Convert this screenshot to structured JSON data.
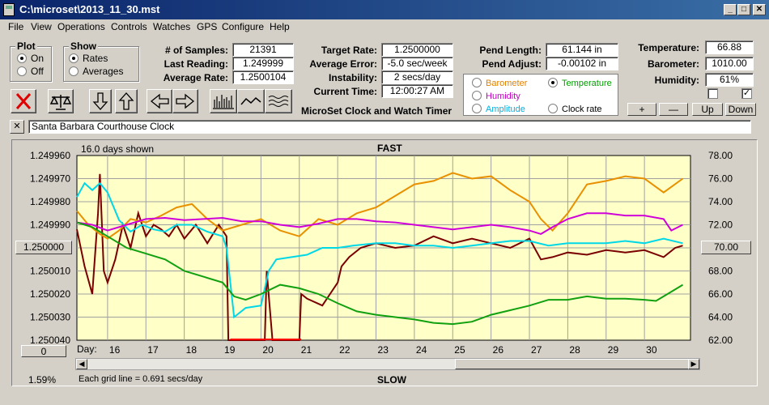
{
  "window": {
    "title": "C:\\microset\\2013_11_30.mst"
  },
  "menu": [
    "File",
    "View",
    "Operations",
    "Controls",
    "Watches",
    "GPS",
    "Configure",
    "Help"
  ],
  "plot_group": {
    "label": "Plot",
    "options": [
      "On",
      "Off"
    ],
    "selected": "On"
  },
  "show_group": {
    "label": "Show",
    "options": [
      "Rates",
      "Averages"
    ],
    "selected": "Rates"
  },
  "stats": {
    "samples_label": "# of Samples:",
    "samples": "21391",
    "last_reading_label": "Last Reading:",
    "last_reading": "1.249999",
    "average_rate_label": "Average Rate:",
    "average_rate": "1.2500104"
  },
  "targets": {
    "target_rate_label": "Target Rate:",
    "target_rate": "1.2500000",
    "average_error_label": "Average Error:",
    "average_error": "-5.0 sec/week",
    "instability_label": "Instability:",
    "instability": "2 secs/day",
    "current_time_label": "Current Time:",
    "current_time": "12:00:27 AM"
  },
  "app_name": "MicroSet Clock and Watch Timer",
  "pendulum": {
    "length_label": "Pend Length:",
    "length": "61.144 in",
    "adjust_label": "Pend Adjust:",
    "adjust": "-0.00102 in"
  },
  "overlay": {
    "options": [
      {
        "label": "Barometer",
        "color": "#e08000",
        "selected": false
      },
      {
        "label": "Temperature",
        "color": "#00a000",
        "selected": true
      },
      {
        "label": "Humidity",
        "color": "#c000c0",
        "selected": false
      },
      {
        "label": "Clock rate",
        "color": "#000000",
        "selected": false
      },
      {
        "label": "Amplitude",
        "color": "#00b0e0",
        "selected": false
      }
    ]
  },
  "environment": {
    "temperature_label": "Temperature:",
    "temperature": "66.88",
    "barometer_label": "Barometer:",
    "barometer": "1010.00",
    "humidity_label": "Humidity:",
    "humidity": "61%",
    "checkbox_left": false,
    "checkbox_right": true
  },
  "scale_buttons": {
    "plus": "+",
    "minus": "—",
    "up": "Up",
    "down": "Down"
  },
  "note": {
    "close": "✕",
    "text": "Santa Barbara Courthouse Clock"
  },
  "chart_data": {
    "type": "line",
    "days_shown": "16.0 days shown",
    "top_label": "FAST",
    "bottom_label": "SLOW",
    "grid_note": "Each grid line = 0.691 secs/day",
    "zoom_percent": "1.59%",
    "day_label": "Day:",
    "center_rate_button": "1.250000",
    "right_center_button": "70.00",
    "offset_button": "0",
    "left_axis_ticks": [
      "1.249960",
      "1.249970",
      "1.249980",
      "1.249990",
      "1.250000",
      "1.250010",
      "1.250020",
      "1.250030",
      "1.250040"
    ],
    "right_axis_ticks": [
      "78.00",
      "76.00",
      "74.00",
      "72.00",
      "70.00",
      "68.00",
      "66.00",
      "64.00",
      "62.00"
    ],
    "day_ticks": [
      "16",
      "17",
      "18",
      "19",
      "20",
      "21",
      "22",
      "23",
      "24",
      "25",
      "26",
      "27",
      "28",
      "29",
      "30"
    ],
    "x_range": [
      15.2,
      31.2
    ],
    "y_left_range": [
      1.24996,
      1.25004
    ],
    "y_right_range": [
      62,
      78
    ],
    "series": [
      {
        "color": "#7a0000",
        "x": [
          15.2,
          15.4,
          15.6,
          15.75,
          15.8,
          15.9,
          16.0,
          16.2,
          16.4,
          16.6,
          16.8,
          17.0,
          17.2,
          17.4,
          17.6,
          17.8,
          18.0,
          18.3,
          18.6,
          18.9,
          19.1,
          19.15,
          19.3,
          19.8,
          20.1,
          20.15,
          20.3,
          20.8,
          21.0,
          21.05,
          21.2,
          21.6,
          21.8,
          22.0,
          22.1,
          22.3,
          22.6,
          23.0,
          23.5,
          24.0,
          24.5,
          25.0,
          25.5,
          26.0,
          26.5,
          27.0,
          27.3,
          27.6,
          28.0,
          28.5,
          29.0,
          29.5,
          30.0,
          30.5,
          30.8,
          31.0
        ],
        "y": [
          1.249992,
          1.250008,
          1.25002,
          1.249985,
          1.249968,
          1.25001,
          1.250015,
          1.250005,
          1.24999,
          1.25,
          1.249985,
          1.249995,
          1.24999,
          1.249992,
          1.249995,
          1.24999,
          1.249996,
          1.24999,
          1.249998,
          1.24999,
          1.249995,
          1.25004,
          1.25004,
          1.25004,
          1.25004,
          1.25001,
          1.25004,
          1.25004,
          1.25004,
          1.25002,
          1.250022,
          1.250025,
          1.25002,
          1.250015,
          1.250008,
          1.250004,
          1.25,
          1.249998,
          1.25,
          1.249999,
          1.249995,
          1.249998,
          1.249996,
          1.249998,
          1.25,
          1.249996,
          1.250005,
          1.250004,
          1.250002,
          1.250003,
          1.250001,
          1.250002,
          1.250001,
          1.250004,
          1.25,
          1.249999
        ]
      },
      {
        "color": "#00d8e8",
        "x": [
          15.2,
          15.4,
          15.6,
          15.8,
          16.0,
          16.3,
          16.6,
          16.9,
          17.2,
          17.5,
          17.8,
          18.2,
          18.6,
          19.0,
          19.1,
          19.3,
          19.6,
          20.0,
          20.2,
          20.4,
          20.8,
          21.2,
          21.6,
          22.0,
          22.4,
          23.0,
          23.5,
          24.0,
          24.5,
          25.0,
          25.5,
          26.0,
          26.5,
          27.0,
          27.5,
          28.0,
          28.5,
          29.0,
          29.5,
          30.0,
          30.5,
          31.0
        ],
        "y": [
          1.249978,
          1.249972,
          1.249975,
          1.249972,
          1.249976,
          1.249988,
          1.249993,
          1.24999,
          1.249992,
          1.249993,
          1.24999,
          1.24999,
          1.249993,
          1.249995,
          1.25,
          1.25003,
          1.250026,
          1.250025,
          1.25001,
          1.250005,
          1.250004,
          1.250003,
          1.25,
          1.25,
          1.249999,
          1.249998,
          1.249998,
          1.249999,
          1.249999,
          1.25,
          1.249999,
          1.249998,
          1.249997,
          1.249997,
          1.249999,
          1.249998,
          1.249998,
          1.249998,
          1.249997,
          1.249998,
          1.249996,
          1.249998
        ]
      },
      {
        "color": "#e89000",
        "x": [
          15.2,
          15.5,
          15.8,
          16.0,
          16.3,
          16.6,
          17.0,
          17.4,
          17.8,
          18.2,
          18.6,
          19.0,
          19.5,
          20.0,
          20.5,
          21.0,
          21.5,
          22.0,
          22.5,
          23.0,
          23.5,
          24.0,
          24.5,
          25.0,
          25.5,
          26.0,
          26.5,
          27.0,
          27.3,
          27.6,
          28.0,
          28.5,
          29.0,
          29.5,
          30.0,
          30.5,
          31.0
        ],
        "y": [
          73.2,
          72.0,
          71.2,
          70.8,
          71.5,
          72.5,
          72.2,
          72.8,
          73.5,
          73.8,
          72.5,
          71.5,
          72.0,
          72.5,
          71.5,
          71.0,
          72.5,
          72.0,
          73.0,
          73.5,
          74.5,
          75.5,
          75.8,
          76.5,
          76.0,
          76.2,
          75.0,
          74.0,
          72.5,
          71.5,
          73.0,
          75.5,
          75.8,
          76.2,
          76.0,
          74.8,
          76.0
        ]
      },
      {
        "color": "#d000d8",
        "x": [
          15.2,
          15.6,
          16.0,
          16.5,
          17.0,
          17.5,
          18.0,
          18.5,
          19.0,
          19.5,
          20.0,
          20.5,
          21.0,
          21.5,
          22.0,
          22.5,
          23.0,
          23.5,
          24.0,
          24.5,
          25.0,
          25.5,
          26.0,
          26.5,
          27.0,
          27.3,
          27.6,
          28.0,
          28.5,
          29.0,
          29.5,
          30.0,
          30.5,
          30.7,
          31.0
        ],
        "y": [
          72.2,
          72.0,
          71.5,
          72.0,
          72.5,
          72.6,
          72.4,
          72.5,
          72.6,
          72.3,
          72.3,
          72.0,
          71.8,
          72.1,
          72.5,
          72.5,
          72.3,
          72.2,
          72.0,
          71.8,
          71.6,
          71.8,
          72.0,
          71.8,
          71.5,
          71.2,
          71.8,
          72.5,
          73.0,
          73.0,
          72.8,
          72.8,
          72.5,
          71.5,
          72.0
        ]
      },
      {
        "color": "#10a010",
        "x": [
          15.2,
          15.6,
          16.0,
          16.5,
          17.0,
          17.5,
          18.0,
          18.5,
          19.0,
          19.3,
          19.6,
          20.0,
          20.5,
          21.0,
          21.5,
          22.0,
          22.5,
          23.0,
          23.5,
          24.0,
          24.5,
          25.0,
          25.5,
          26.0,
          26.5,
          27.0,
          27.5,
          28.0,
          28.5,
          29.0,
          29.5,
          30.0,
          30.3,
          30.6,
          31.0
        ],
        "y": [
          72.2,
          71.8,
          71.0,
          70.0,
          69.5,
          69.0,
          68.0,
          67.5,
          67.0,
          65.8,
          65.5,
          66.0,
          66.8,
          66.5,
          66.0,
          65.2,
          64.5,
          64.2,
          64.0,
          63.8,
          63.5,
          63.4,
          63.6,
          64.2,
          64.6,
          65.0,
          65.5,
          65.5,
          65.8,
          65.6,
          65.6,
          65.5,
          65.4,
          66.0,
          66.8
        ]
      }
    ]
  }
}
